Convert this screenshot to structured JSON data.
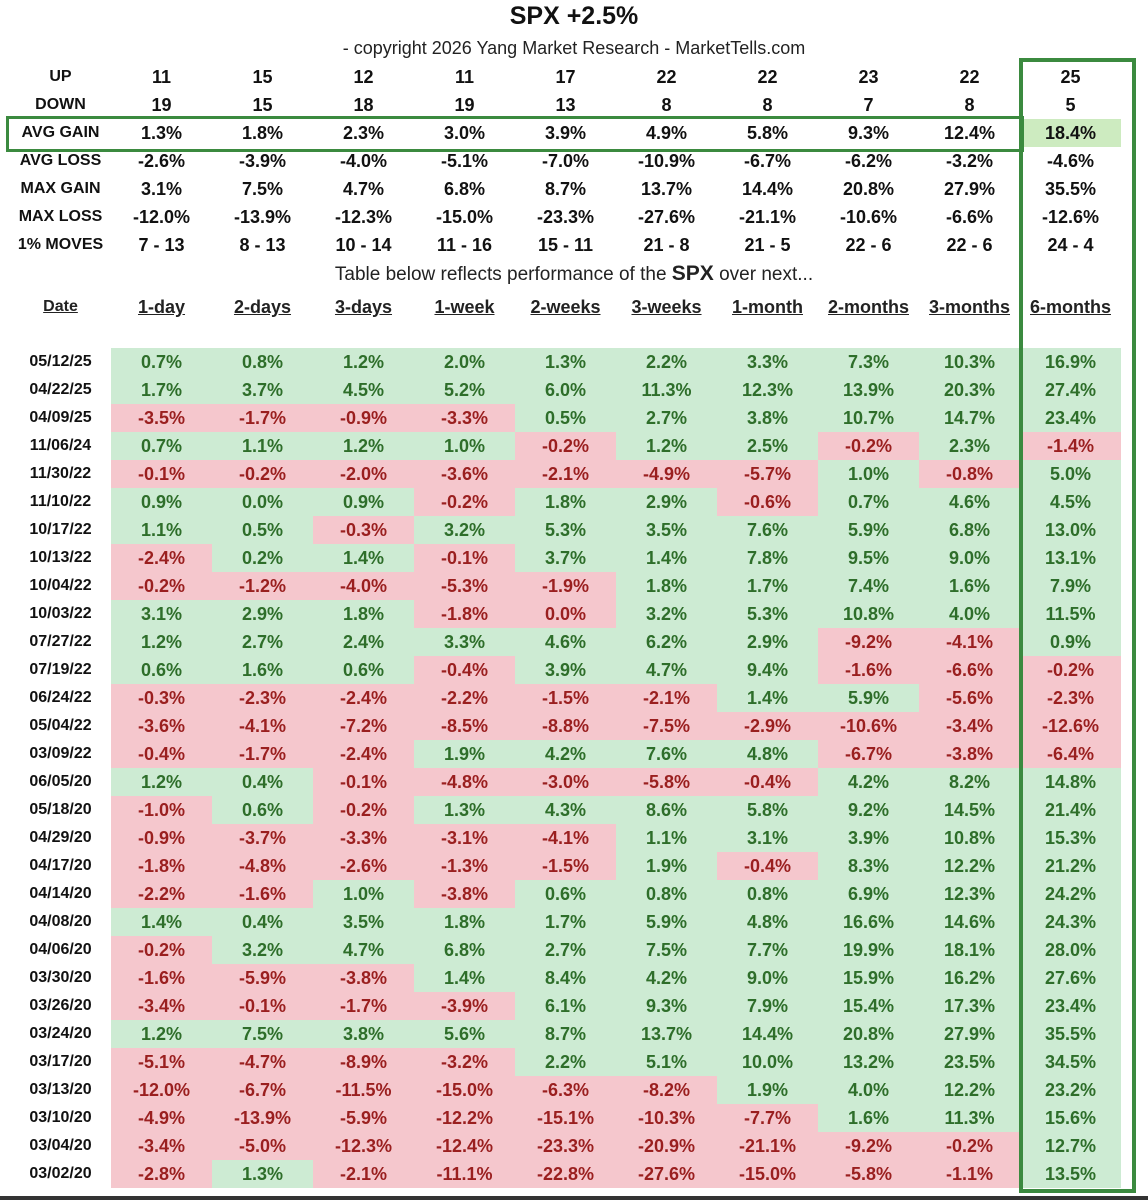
{
  "title": "SPX +2.5%",
  "copyright": "- copyright 2026 Yang Market Research - MarketTells.com",
  "caption": {
    "before": "Table below reflects performance of the ",
    "ticker": "SPX",
    "after": " over next..."
  },
  "colors": {
    "pos_bg": "#cdebd3",
    "neg_bg": "#f5c7cd",
    "pos_text": "#2e6e2a",
    "neg_text": "#9a1f1f",
    "highlight": "#3b8a3f"
  },
  "stats": [
    {
      "label": "UP",
      "values": [
        "11",
        "15",
        "12",
        "11",
        "17",
        "22",
        "22",
        "23",
        "22",
        "25"
      ]
    },
    {
      "label": "DOWN",
      "values": [
        "19",
        "15",
        "18",
        "19",
        "13",
        "8",
        "8",
        "7",
        "8",
        "5"
      ]
    },
    {
      "label": "AVG GAIN",
      "values": [
        "1.3%",
        "1.8%",
        "2.3%",
        "3.0%",
        "3.9%",
        "4.9%",
        "5.8%",
        "9.3%",
        "12.4%",
        "18.4%"
      ]
    },
    {
      "label": "AVG LOSS",
      "values": [
        "-2.6%",
        "-3.9%",
        "-4.0%",
        "-5.1%",
        "-7.0%",
        "-10.9%",
        "-6.7%",
        "-6.2%",
        "-3.2%",
        "-4.6%"
      ]
    },
    {
      "label": "MAX GAIN",
      "values": [
        "3.1%",
        "7.5%",
        "4.7%",
        "6.8%",
        "8.7%",
        "13.7%",
        "14.4%",
        "20.8%",
        "27.9%",
        "35.5%"
      ]
    },
    {
      "label": "MAX LOSS",
      "values": [
        "-12.0%",
        "-13.9%",
        "-12.3%",
        "-15.0%",
        "-23.3%",
        "-27.6%",
        "-21.1%",
        "-10.6%",
        "-6.6%",
        "-12.6%"
      ]
    },
    {
      "label": "1% MOVES",
      "values": [
        "7 - 13",
        "8 - 13",
        "10 - 14",
        "11 - 16",
        "15 - 11",
        "21 - 8",
        "21 - 5",
        "22 - 6",
        "22 - 6",
        "24 - 4"
      ]
    }
  ],
  "headers": [
    "Date",
    "1-day",
    "2-days",
    "3-days",
    "1-week",
    "2-weeks",
    "3-weeks",
    "1-month",
    "2-months",
    "3-months",
    "6-months"
  ],
  "rows": [
    {
      "date": "05/12/25",
      "values": [
        "0.7%",
        "0.8%",
        "1.2%",
        "2.0%",
        "1.3%",
        "2.2%",
        "3.3%",
        "7.3%",
        "10.3%",
        "16.9%"
      ]
    },
    {
      "date": "04/22/25",
      "values": [
        "1.7%",
        "3.7%",
        "4.5%",
        "5.2%",
        "6.0%",
        "11.3%",
        "12.3%",
        "13.9%",
        "20.3%",
        "27.4%"
      ]
    },
    {
      "date": "04/09/25",
      "values": [
        "-3.5%",
        "-1.7%",
        "-0.9%",
        "-3.3%",
        "0.5%",
        "2.7%",
        "3.8%",
        "10.7%",
        "14.7%",
        "23.4%"
      ]
    },
    {
      "date": "11/06/24",
      "values": [
        "0.7%",
        "1.1%",
        "1.2%",
        "1.0%",
        "-0.2%",
        "1.2%",
        "2.5%",
        "-0.2%",
        "2.3%",
        "-1.4%"
      ]
    },
    {
      "date": "11/30/22",
      "values": [
        "-0.1%",
        "-0.2%",
        "-2.0%",
        "-3.6%",
        "-2.1%",
        "-4.9%",
        "-5.7%",
        "1.0%",
        "-0.8%",
        "5.0%"
      ]
    },
    {
      "date": "11/10/22",
      "values": [
        "0.9%",
        "0.0%",
        "0.9%",
        "-0.2%",
        "1.8%",
        "2.9%",
        "-0.6%",
        "0.7%",
        "4.6%",
        "4.5%"
      ]
    },
    {
      "date": "10/17/22",
      "values": [
        "1.1%",
        "0.5%",
        "-0.3%",
        "3.2%",
        "5.3%",
        "3.5%",
        "7.6%",
        "5.9%",
        "6.8%",
        "13.0%"
      ]
    },
    {
      "date": "10/13/22",
      "values": [
        "-2.4%",
        "0.2%",
        "1.4%",
        "-0.1%",
        "3.7%",
        "1.4%",
        "7.8%",
        "9.5%",
        "9.0%",
        "13.1%"
      ]
    },
    {
      "date": "10/04/22",
      "values": [
        "-0.2%",
        "-1.2%",
        "-4.0%",
        "-5.3%",
        "-1.9%",
        "1.8%",
        "1.7%",
        "7.4%",
        "1.6%",
        "7.9%"
      ]
    },
    {
      "date": "10/03/22",
      "values": [
        "3.1%",
        "2.9%",
        "1.8%",
        "-1.8%",
        "0.0%",
        "3.2%",
        "5.3%",
        "10.8%",
        "4.0%",
        "11.5%"
      ],
      "neg_zero": [
        4
      ]
    },
    {
      "date": "07/27/22",
      "values": [
        "1.2%",
        "2.7%",
        "2.4%",
        "3.3%",
        "4.6%",
        "6.2%",
        "2.9%",
        "-9.2%",
        "-4.1%",
        "0.9%"
      ]
    },
    {
      "date": "07/19/22",
      "values": [
        "0.6%",
        "1.6%",
        "0.6%",
        "-0.4%",
        "3.9%",
        "4.7%",
        "9.4%",
        "-1.6%",
        "-6.6%",
        "-0.2%"
      ]
    },
    {
      "date": "06/24/22",
      "values": [
        "-0.3%",
        "-2.3%",
        "-2.4%",
        "-2.2%",
        "-1.5%",
        "-2.1%",
        "1.4%",
        "5.9%",
        "-5.6%",
        "-2.3%"
      ]
    },
    {
      "date": "05/04/22",
      "values": [
        "-3.6%",
        "-4.1%",
        "-7.2%",
        "-8.5%",
        "-8.8%",
        "-7.5%",
        "-2.9%",
        "-10.6%",
        "-3.4%",
        "-12.6%"
      ]
    },
    {
      "date": "03/09/22",
      "values": [
        "-0.4%",
        "-1.7%",
        "-2.4%",
        "1.9%",
        "4.2%",
        "7.6%",
        "4.8%",
        "-6.7%",
        "-3.8%",
        "-6.4%"
      ]
    },
    {
      "date": "06/05/20",
      "values": [
        "1.2%",
        "0.4%",
        "-0.1%",
        "-4.8%",
        "-3.0%",
        "-5.8%",
        "-0.4%",
        "4.2%",
        "8.2%",
        "14.8%"
      ]
    },
    {
      "date": "05/18/20",
      "values": [
        "-1.0%",
        "0.6%",
        "-0.2%",
        "1.3%",
        "4.3%",
        "8.6%",
        "5.8%",
        "9.2%",
        "14.5%",
        "21.4%"
      ]
    },
    {
      "date": "04/29/20",
      "values": [
        "-0.9%",
        "-3.7%",
        "-3.3%",
        "-3.1%",
        "-4.1%",
        "1.1%",
        "3.1%",
        "3.9%",
        "10.8%",
        "15.3%"
      ]
    },
    {
      "date": "04/17/20",
      "values": [
        "-1.8%",
        "-4.8%",
        "-2.6%",
        "-1.3%",
        "-1.5%",
        "1.9%",
        "-0.4%",
        "8.3%",
        "12.2%",
        "21.2%"
      ]
    },
    {
      "date": "04/14/20",
      "values": [
        "-2.2%",
        "-1.6%",
        "1.0%",
        "-3.8%",
        "0.6%",
        "0.8%",
        "0.8%",
        "6.9%",
        "12.3%",
        "24.2%"
      ]
    },
    {
      "date": "04/08/20",
      "values": [
        "1.4%",
        "0.4%",
        "3.5%",
        "1.8%",
        "1.7%",
        "5.9%",
        "4.8%",
        "16.6%",
        "14.6%",
        "24.3%"
      ]
    },
    {
      "date": "04/06/20",
      "values": [
        "-0.2%",
        "3.2%",
        "4.7%",
        "6.8%",
        "2.7%",
        "7.5%",
        "7.7%",
        "19.9%",
        "18.1%",
        "28.0%"
      ]
    },
    {
      "date": "03/30/20",
      "values": [
        "-1.6%",
        "-5.9%",
        "-3.8%",
        "1.4%",
        "8.4%",
        "4.2%",
        "9.0%",
        "15.9%",
        "16.2%",
        "27.6%"
      ]
    },
    {
      "date": "03/26/20",
      "values": [
        "-3.4%",
        "-0.1%",
        "-1.7%",
        "-3.9%",
        "6.1%",
        "9.3%",
        "7.9%",
        "15.4%",
        "17.3%",
        "23.4%"
      ]
    },
    {
      "date": "03/24/20",
      "values": [
        "1.2%",
        "7.5%",
        "3.8%",
        "5.6%",
        "8.7%",
        "13.7%",
        "14.4%",
        "20.8%",
        "27.9%",
        "35.5%"
      ]
    },
    {
      "date": "03/17/20",
      "values": [
        "-5.1%",
        "-4.7%",
        "-8.9%",
        "-3.2%",
        "2.2%",
        "5.1%",
        "10.0%",
        "13.2%",
        "23.5%",
        "34.5%"
      ]
    },
    {
      "date": "03/13/20",
      "values": [
        "-12.0%",
        "-6.7%",
        "-11.5%",
        "-15.0%",
        "-6.3%",
        "-8.2%",
        "1.9%",
        "4.0%",
        "12.2%",
        "23.2%"
      ]
    },
    {
      "date": "03/10/20",
      "values": [
        "-4.9%",
        "-13.9%",
        "-5.9%",
        "-12.2%",
        "-15.1%",
        "-10.3%",
        "-7.7%",
        "1.6%",
        "11.3%",
        "15.6%"
      ]
    },
    {
      "date": "03/04/20",
      "values": [
        "-3.4%",
        "-5.0%",
        "-12.3%",
        "-12.4%",
        "-23.3%",
        "-20.9%",
        "-21.1%",
        "-9.2%",
        "-0.2%",
        "12.7%"
      ]
    },
    {
      "date": "03/02/20",
      "values": [
        "-2.8%",
        "1.3%",
        "-2.1%",
        "-11.1%",
        "-22.8%",
        "-27.6%",
        "-15.0%",
        "-5.8%",
        "-1.1%",
        "13.5%"
      ]
    }
  ]
}
